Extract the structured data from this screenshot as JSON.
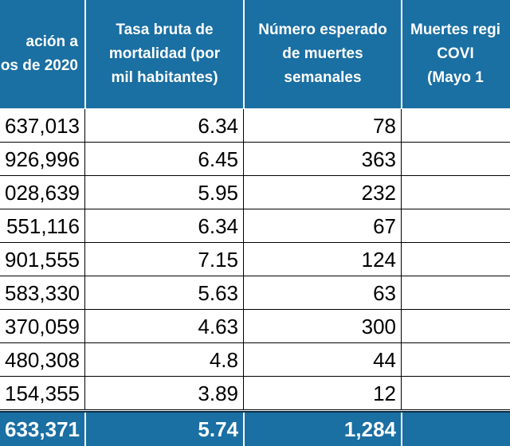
{
  "colors": {
    "header_bg": "#1a6fa3",
    "header_text": "#ffffff",
    "total_bg": "#1a6fa3"
  },
  "headers": [
    "ación a\nos de 2020",
    "Tasa bruta de\nmortalidad (por\nmil habitantes)",
    "Número esperado\nde muertes\nsemanales",
    "Muertes regi\nCOVI\n(Mayo 1"
  ],
  "rows": [
    [
      "637,013",
      "6.34",
      "78",
      ""
    ],
    [
      "926,996",
      "6.45",
      "363",
      ""
    ],
    [
      "028,639",
      "5.95",
      "232",
      ""
    ],
    [
      "551,116",
      "6.34",
      "67",
      ""
    ],
    [
      "901,555",
      "7.15",
      "124",
      ""
    ],
    [
      "583,330",
      "5.63",
      "63",
      ""
    ],
    [
      "370,059",
      "4.63",
      "300",
      ""
    ],
    [
      "480,308",
      "4.8",
      "44",
      ""
    ],
    [
      "154,355",
      "3.89",
      "12",
      ""
    ]
  ],
  "total": [
    "633,371",
    "5.74",
    "1,284",
    ""
  ]
}
